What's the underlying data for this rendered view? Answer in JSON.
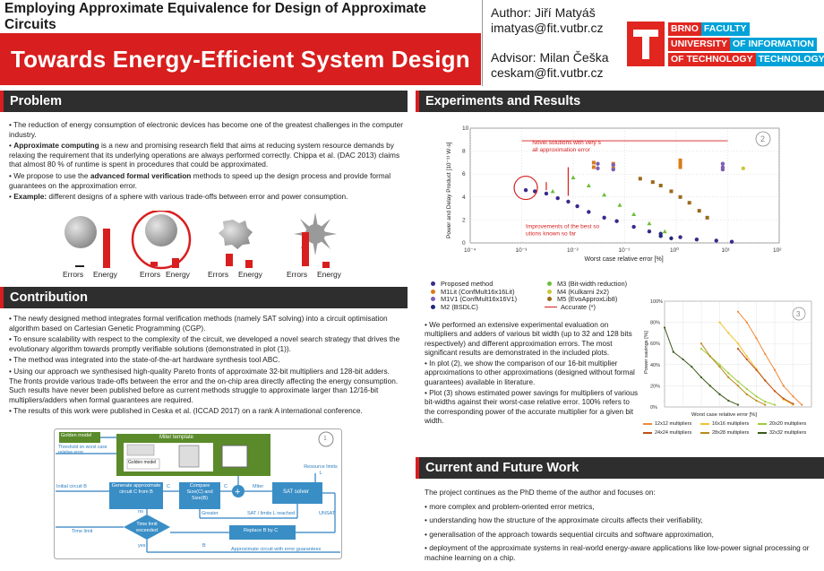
{
  "header": {
    "subtitle": "Employing Approximate Equivalence for Design of Approximate Circuits",
    "title": "Towards Energy-Efficient System Design",
    "author_label": "Author: Jiří Matyáš",
    "author_email": "imatyas@fit.vutbr.cz",
    "advisor_label": "Advisor: Milan Češka",
    "advisor_email": "ceskam@fit.vutbr.cz"
  },
  "logo": {
    "row1": [
      "BRNO",
      "FACULTY"
    ],
    "row2": [
      "UNIVERSITY",
      "OF INFORMATION"
    ],
    "row3": [
      "OF TECHNOLOGY",
      "TECHNOLOGY"
    ],
    "red": "#e0261f",
    "blue": "#00a2d8"
  },
  "problem": {
    "heading": "Problem",
    "p1": "• The reduction of energy consumption of electronic devices has become one of the greatest challenges in the computer industry.",
    "p2_bold": "Approximate computing",
    "p2_rest": " is a new and promising research field that aims at reducing system resource demands by relaxing the requirement that its underlying operations are always performed correctly. Chippa et al. (DAC 2013) claims that almost 80 % of runtime is spent in procedures that could be approximated.",
    "p3_pre": "• We propose to use the ",
    "p3_bold": "advanced formal verification",
    "p3_rest": " methods to speed up the design process and provide formal guarantees on the approximation error.",
    "p4_bold": "Example:",
    "p4_rest": " different designs of a sphere with various trade-offs between error and power consumption.",
    "errors_label": "Errors",
    "energy_label": "Energy"
  },
  "contribution": {
    "heading": "Contribution",
    "p1": "• The newly designed method integrates formal verification methods (namely SAT solving) into a circuit optimisation algorithm based on Cartesian Genetic Programming (CGP).",
    "p2": "• To ensure scalability with respect to the complexity of the circuit, we developed a novel search strategy that drives the evolutionary algorithm towards promptly verifiable solutions (demonstrated in plot (1)).",
    "p3": "• The method was integrated into the state-of-the-art hardware synthesis tool ABC.",
    "p4": "• Using our approach we synthesised high-quality Pareto fronts of approximate 32-bit multipliers and 128-bit adders. The fronts provide various trade-offs between the error and the on-chip area directly affecting the energy consumption. Such results have never been published before as current methods struggle to approximate larger than 12/16-bit multipliers/adders when formal guarantees are required.",
    "p5": "• The results of this work were published in Ceska et al. (ICCAD 2017) on a rank A international conference."
  },
  "diagram": {
    "golden_model": "Golden model",
    "miter_template": "Miter template",
    "golden_model_inner": "Golden model",
    "threshold": "Threshold on worst case relative error",
    "initial_circuit": "Initial circuit B",
    "generate": "Generate approximate circuit C from B",
    "compare": "Compare Size(C) and Size(B)",
    "c_label": "C",
    "miter": "Miter",
    "sat_solver": "SAT solver",
    "resource_limits": "Resource limits L",
    "greater": "Greater",
    "sat_limits": "SAT / limits L reached",
    "unsat": "UNSAT",
    "time_limit_q": "Time limit exceeded",
    "no": "no",
    "yes": "yes",
    "time_limit": "Time limit",
    "replace": "Replace B by C",
    "b_label": "B",
    "output": "Approximate circuit with error guarantees",
    "plot_num": "1"
  },
  "experiments": {
    "heading": "Experiments and Results",
    "p1": "• We performed an extensive experimental evaluation on multipliers and adders of various bit width (up to 32 and 128 bits respectively) and different approximation errors. The most significant results are demonstrated in the included plots.",
    "p2": "• In plot (2), we show the comparison of our 16-bit multiplier approximations to other approximations (designed without formal guarantees) available in literature.",
    "p3": "• Plot (3) shows estimated power savings for multipliers of various bit-widths against their worst-case relative error. 100% refers to the corresponding power of the accurate multiplier for a given bit width."
  },
  "future": {
    "heading": "Current and Future Work",
    "intro": "The project continues as the PhD theme of the author and focuses on:",
    "items": [
      "• more complex and problem-oriented error metrics,",
      "• understanding how the structure of the approximate circuits affects their verifiability,",
      "• generalisation of the approach towards sequential circuits and software approximation,",
      "• deployment of the approximate systems in real-world energy-aware applications like low-power signal processing or machine learning on a chip."
    ]
  },
  "chart_data": [
    {
      "type": "scatter",
      "plot_num": "2",
      "xlabel": "Worst case relative error [%]",
      "ylabel": "Power and Delay Product [10⁻¹¹ W·s]",
      "xscale": "log",
      "xlim": [
        0.0001,
        100
      ],
      "ylim": [
        0,
        10
      ],
      "xticks": [
        "10⁻⁴",
        "10⁻³",
        "10⁻²",
        "10⁻¹",
        "10⁰",
        "10¹",
        "10²"
      ],
      "yticks": [
        "0",
        "2",
        "4",
        "6",
        "8",
        "10"
      ],
      "grid": true,
      "annotations": [
        "Novel solutions with very small approximation error",
        "Improvements of the best solutions known so far"
      ],
      "accurate_line": 8.9,
      "series": [
        {
          "name": "Proposed method",
          "color": "#3a2a8a",
          "x": [
            0.0012,
            0.0018,
            0.003,
            0.005,
            0.008,
            0.012,
            0.02,
            0.04,
            0.07,
            0.15,
            0.3,
            0.5,
            1.2,
            2.5,
            6,
            12
          ],
          "y": [
            4.6,
            4.5,
            4.3,
            3.9,
            3.6,
            3.2,
            2.7,
            2.2,
            1.9,
            1.4,
            1.0,
            0.8,
            0.5,
            0.3,
            0.2,
            0.1
          ]
        },
        {
          "name": "M1Lit (ConfMult16x16Lit)",
          "color": "#d97b1a",
          "x": [
            0.025,
            0.025,
            0.06,
            0.06,
            1.2,
            1.2,
            1.2,
            1.2
          ],
          "y": [
            7.0,
            6.6,
            6.9,
            6.5,
            7.2,
            7.0,
            6.8,
            6.6
          ]
        },
        {
          "name": "M1V1 (ConfMult16x16V1)",
          "color": "#7b5fb5",
          "x": [
            0.03,
            0.03,
            0.06,
            0.06,
            8,
            8,
            8
          ],
          "y": [
            6.9,
            6.5,
            6.8,
            6.4,
            6.9,
            6.6,
            6.4
          ]
        },
        {
          "name": "M2 (BSDLC)",
          "color": "#1f2a7a",
          "x": [
            0.5,
            0.8
          ],
          "y": [
            0.6,
            0.4
          ]
        },
        {
          "name": "M3 (Bit-width reduction)",
          "color": "#6bbf3a",
          "x": [
            0.004,
            0.01,
            0.02,
            0.04,
            0.08,
            0.15,
            0.3,
            0.6
          ],
          "y": [
            4.5,
            5.7,
            5.0,
            4.2,
            3.3,
            2.5,
            1.7,
            1.0
          ]
        },
        {
          "name": "M4 (Kulkarni 2x2)",
          "color": "#c9c83a",
          "x": [
            20
          ],
          "y": [
            6.5
          ]
        },
        {
          "name": "M5 (EvoApproxLib8)",
          "color": "#9a6a1a",
          "x": [
            0.2,
            0.35,
            0.5,
            0.8,
            1.2,
            1.8,
            2.8,
            4
          ],
          "y": [
            5.6,
            5.3,
            5.0,
            4.5,
            4.0,
            3.5,
            2.8,
            2.2
          ]
        },
        {
          "name": "Accurate (*)",
          "color": "#d81e1e",
          "x": [],
          "y": []
        }
      ]
    },
    {
      "type": "line",
      "plot_num": "3",
      "xlabel": "Worst case relative error [%]",
      "ylabel": "Power savings [%]",
      "xscale": "log",
      "xlim": [
        1e-07,
        10
      ],
      "ylim": [
        0,
        100
      ],
      "yticks": [
        "0%",
        "20%",
        "40%",
        "60%",
        "80%",
        "100%"
      ],
      "grid": true,
      "series": [
        {
          "name": "12x12 multipliers",
          "color": "#f08a3a",
          "x": [
            0.001,
            0.003,
            0.01,
            0.03,
            0.1,
            0.3,
            1,
            3
          ],
          "y": [
            90,
            80,
            65,
            50,
            35,
            20,
            10,
            2
          ]
        },
        {
          "name": "16x16 multipliers",
          "color": "#f2c230",
          "x": [
            0.0001,
            0.0003,
            0.001,
            0.003,
            0.01,
            0.03,
            0.1,
            0.3,
            1
          ],
          "y": [
            80,
            70,
            60,
            48,
            36,
            25,
            15,
            7,
            2
          ]
        },
        {
          "name": "20x20 multipliers",
          "color": "#9ccf3a",
          "x": [
            1e-05,
            3e-05,
            0.0001,
            0.0003,
            0.001,
            0.003,
            0.01,
            0.03,
            0.1
          ],
          "y": [
            55,
            48,
            40,
            32,
            24,
            17,
            10,
            5,
            2
          ]
        },
        {
          "name": "24x24 multipliers",
          "color": "#c0501a",
          "x": [
            0.001,
            0.003,
            0.01,
            0.03,
            0.1,
            0.3,
            1
          ],
          "y": [
            55,
            45,
            35,
            25,
            15,
            8,
            3
          ]
        },
        {
          "name": "28x28 multipliers",
          "color": "#b88a1a",
          "x": [
            1e-05,
            3e-05,
            0.0001,
            0.0003,
            0.001,
            0.003,
            0.01,
            0.03
          ],
          "y": [
            60,
            48,
            38,
            28,
            20,
            12,
            6,
            2
          ]
        },
        {
          "name": "32x32 multipliers",
          "color": "#3a5a1a",
          "x": [
            1e-07,
            3e-07,
            1e-06,
            3e-06,
            1e-05,
            3e-05,
            0.0001,
            0.0003,
            0.001
          ],
          "y": [
            75,
            52,
            45,
            38,
            28,
            20,
            12,
            6,
            2
          ]
        }
      ]
    }
  ]
}
